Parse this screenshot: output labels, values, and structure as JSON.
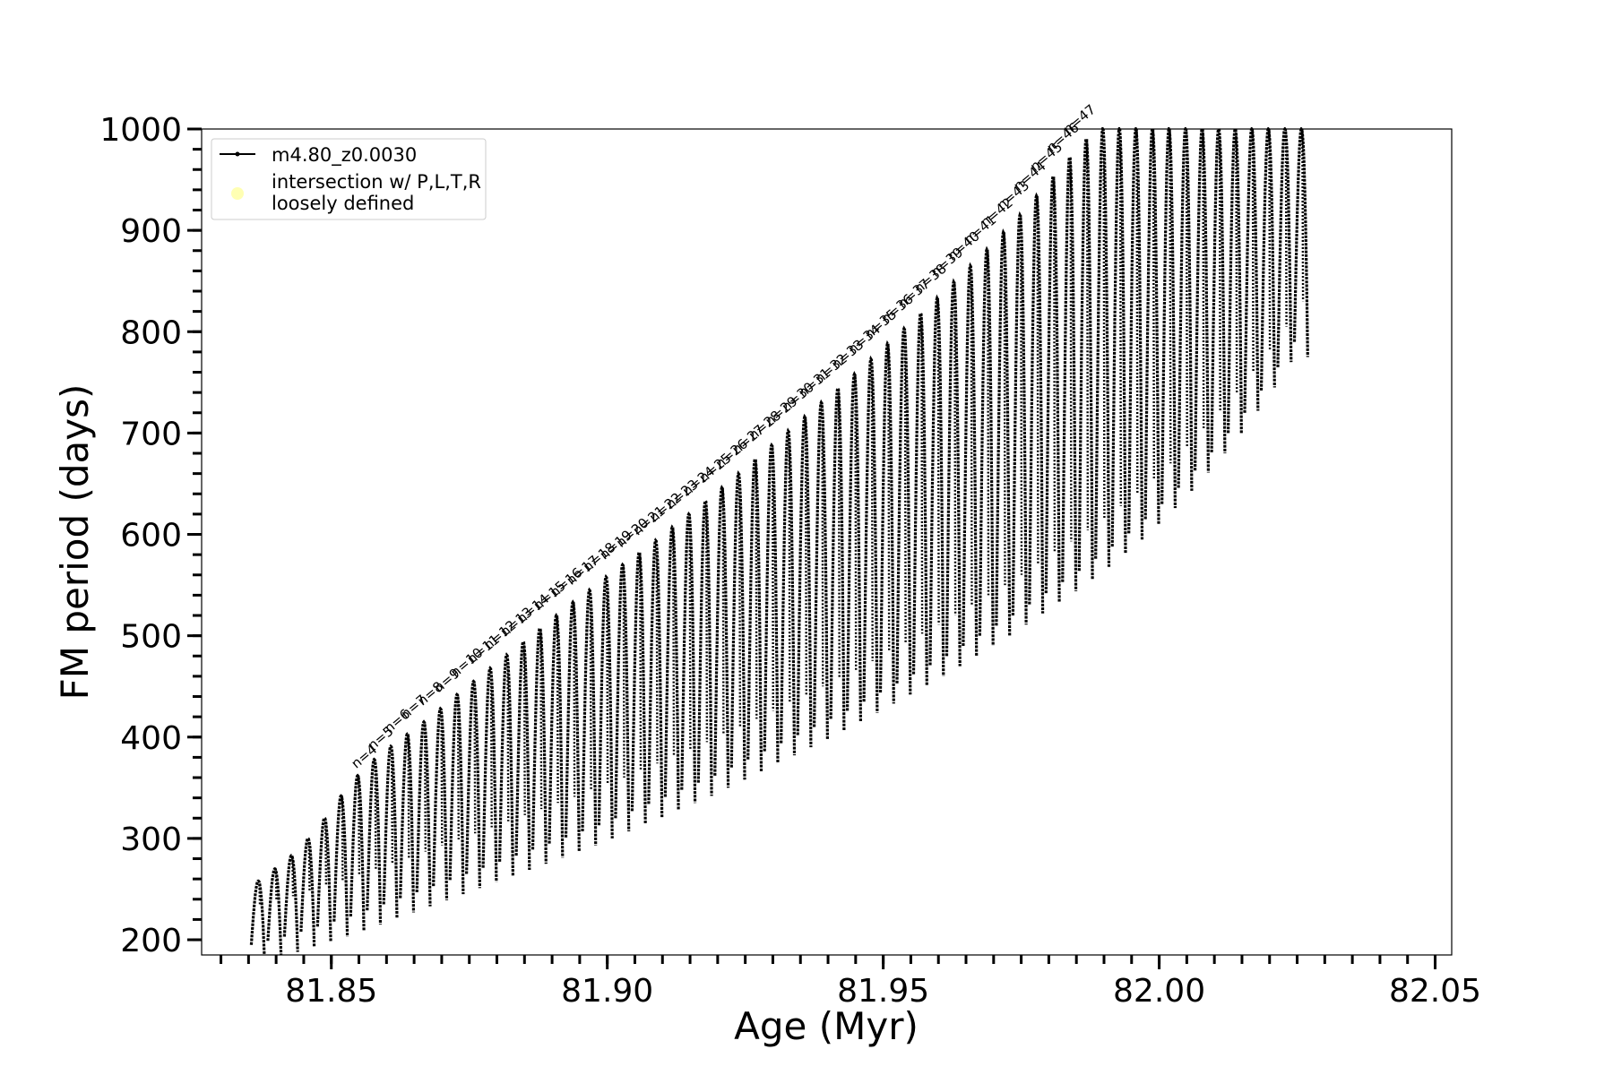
{
  "chart_data": {
    "type": "line",
    "xlabel": "Age (Myr)",
    "ylabel": "FM period (days)",
    "xlim": [
      81.8265,
      82.053
    ],
    "ylim": [
      185,
      1000
    ],
    "xticks": [
      81.85,
      81.9,
      81.95,
      82.0,
      82.05
    ],
    "xtick_labels": [
      "81.85",
      "81.90",
      "81.95",
      "82.00",
      "82.05"
    ],
    "yticks": [
      200,
      300,
      400,
      500,
      600,
      700,
      800,
      900,
      1000
    ],
    "ytick_labels": [
      "200",
      "300",
      "400",
      "500",
      "600",
      "700",
      "800",
      "900",
      "1000"
    ],
    "minor_x_step": 0.005,
    "minor_y_step": 20,
    "grid": false,
    "legend": {
      "placement": "top-left",
      "entries": [
        {
          "label": "m4.80_z0.0030",
          "marker": "line-with-dots",
          "color": "#000000"
        },
        {
          "label_lines": [
            "intersection w/ P,L,T,R",
            "loosely defined"
          ],
          "marker": "circle",
          "color": "#ffffb3"
        }
      ]
    },
    "series": [
      {
        "name": "m4.80_z0.0030",
        "color": "#000000",
        "description_of_shape": "blue-loop pulses: repeated sawtooth cycles, each rising from a trough to a peak then dropping",
        "cycles": {
          "age_start": [
            81.8355,
            81.8385,
            81.8415,
            81.8445,
            81.8475,
            81.8505,
            81.8535,
            81.8565,
            81.8595,
            81.8625,
            81.8655,
            81.8685,
            81.8715,
            81.8745,
            81.8775,
            81.8805,
            81.8835,
            81.8865,
            81.8895,
            81.8925,
            81.8955,
            81.8985,
            81.9015,
            81.9045,
            81.9075,
            81.9105,
            81.9135,
            81.9165,
            81.9195,
            81.9225,
            81.9255,
            81.9285,
            81.9315,
            81.9345,
            81.9375,
            81.9405,
            81.9435,
            81.9465,
            81.9495,
            81.9525,
            81.9555,
            81.9585,
            81.9615,
            81.9645,
            81.9675,
            81.9705,
            81.9735,
            81.9765,
            81.9795,
            81.9825,
            81.9855,
            81.9885,
            81.9915,
            81.9945,
            81.9975,
            82.0005,
            82.0035,
            82.0065,
            82.0095,
            82.0125,
            82.0155,
            82.0185,
            82.0215,
            82.0245
          ],
          "trough": [
            195,
            199,
            203,
            208,
            213,
            218,
            223,
            229,
            235,
            241,
            247,
            253,
            259,
            265,
            271,
            277,
            283,
            289,
            295,
            301,
            307,
            313,
            320,
            327,
            334,
            341,
            348,
            355,
            362,
            370,
            378,
            386,
            394,
            402,
            410,
            418,
            426,
            435,
            444,
            453,
            462,
            471,
            480,
            490,
            500,
            510,
            520,
            531,
            542,
            553,
            564,
            576,
            588,
            601,
            615,
            630,
            646,
            663,
            681,
            700,
            720,
            742,
            765,
            790
          ],
          "peak": [
            258,
            270,
            283,
            300,
            320,
            342,
            362,
            378,
            391,
            403,
            415,
            428,
            442,
            455,
            468,
            481,
            494,
            507,
            520,
            533,
            545,
            558,
            570,
            582,
            594,
            607,
            620,
            633,
            646,
            660,
            674,
            688,
            702,
            716,
            730,
            744,
            758,
            773,
            788,
            803,
            818,
            833,
            849,
            865,
            881,
            898,
            915,
            934,
            953,
            972,
            990,
            1000,
            1000,
            1000,
            1000,
            1000,
            1000,
            1000,
            1000,
            1000,
            1000,
            1000,
            1000,
            1000
          ]
        }
      }
    ],
    "annotations": [
      {
        "text": "n=4",
        "x": 81.8545,
        "y": 365
      },
      {
        "text": "n=5",
        "x": 81.8575,
        "y": 383
      },
      {
        "text": "n=6",
        "x": 81.8605,
        "y": 400
      },
      {
        "text": "n=7",
        "x": 81.8635,
        "y": 414
      },
      {
        "text": "n=8",
        "x": 81.8665,
        "y": 427
      },
      {
        "text": "n=9",
        "x": 81.8695,
        "y": 440
      },
      {
        "text": "n=10",
        "x": 81.8725,
        "y": 455
      },
      {
        "text": "n=11",
        "x": 81.8755,
        "y": 468
      },
      {
        "text": "n=12",
        "x": 81.8785,
        "y": 482
      },
      {
        "text": "n=13",
        "x": 81.8815,
        "y": 495
      },
      {
        "text": "n=14",
        "x": 81.8845,
        "y": 508
      },
      {
        "text": "n=15",
        "x": 81.8875,
        "y": 521
      },
      {
        "text": "n=16",
        "x": 81.8905,
        "y": 534
      },
      {
        "text": "n=17",
        "x": 81.8935,
        "y": 546
      },
      {
        "text": "n=18",
        "x": 81.8965,
        "y": 559
      },
      {
        "text": "n=19",
        "x": 81.8995,
        "y": 571
      },
      {
        "text": "n=20",
        "x": 81.9025,
        "y": 583
      },
      {
        "text": "n=21",
        "x": 81.9055,
        "y": 595
      },
      {
        "text": "n=22",
        "x": 81.9085,
        "y": 608
      },
      {
        "text": "n=23",
        "x": 81.9115,
        "y": 621
      },
      {
        "text": "n=24",
        "x": 81.9145,
        "y": 634
      },
      {
        "text": "n=25",
        "x": 81.9175,
        "y": 647
      },
      {
        "text": "n=26",
        "x": 81.9205,
        "y": 661
      },
      {
        "text": "n=27",
        "x": 81.9235,
        "y": 675
      },
      {
        "text": "n=28",
        "x": 81.9265,
        "y": 689
      },
      {
        "text": "n=29",
        "x": 81.9295,
        "y": 703
      },
      {
        "text": "n=30",
        "x": 81.9325,
        "y": 717
      },
      {
        "text": "n=31",
        "x": 81.9355,
        "y": 731
      },
      {
        "text": "n=32",
        "x": 81.9385,
        "y": 745
      },
      {
        "text": "n=33",
        "x": 81.9415,
        "y": 759
      },
      {
        "text": "n=34",
        "x": 81.9445,
        "y": 774
      },
      {
        "text": "n=35",
        "x": 81.9475,
        "y": 789
      },
      {
        "text": "n=36",
        "x": 81.9505,
        "y": 804
      },
      {
        "text": "n=37",
        "x": 81.9535,
        "y": 819
      },
      {
        "text": "n=38",
        "x": 81.9565,
        "y": 834
      },
      {
        "text": "n=39",
        "x": 81.9595,
        "y": 850
      },
      {
        "text": "n=40",
        "x": 81.9625,
        "y": 866
      },
      {
        "text": "n=41",
        "x": 81.9655,
        "y": 882
      },
      {
        "text": "n=42",
        "x": 81.9685,
        "y": 899
      },
      {
        "text": "n=43",
        "x": 81.9715,
        "y": 916
      },
      {
        "text": "n=44",
        "x": 81.9745,
        "y": 935
      },
      {
        "text": "n=45",
        "x": 81.9775,
        "y": 954
      },
      {
        "text": "n=46",
        "x": 81.9805,
        "y": 973
      },
      {
        "text": "n=47",
        "x": 81.9835,
        "y": 991
      }
    ]
  }
}
